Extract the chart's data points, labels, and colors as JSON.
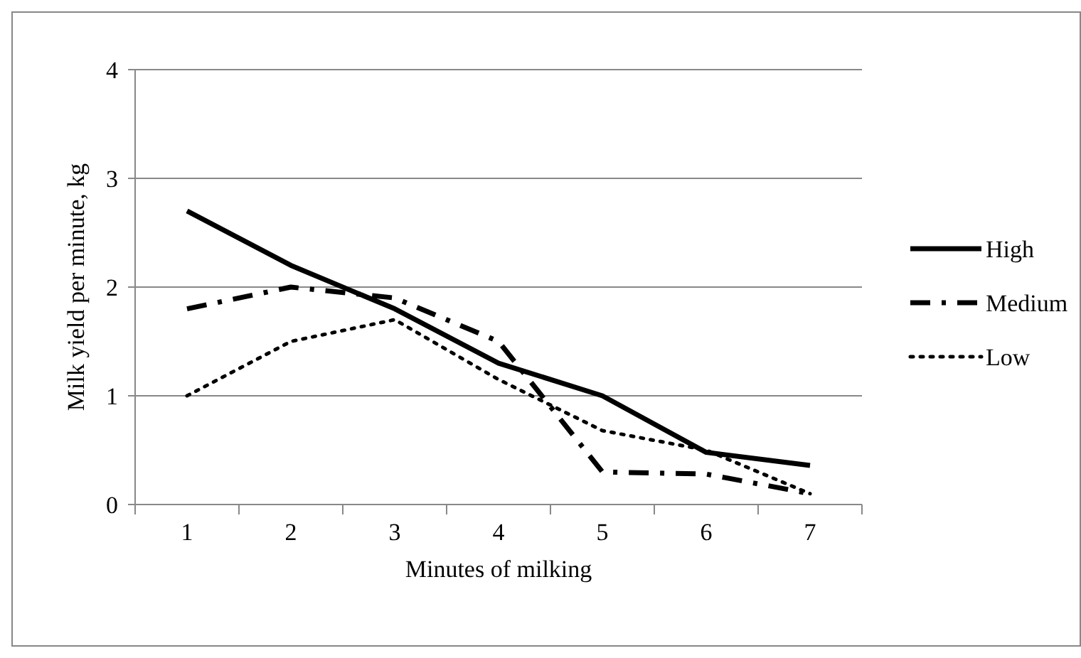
{
  "chart_data": {
    "type": "line",
    "xlabel": "Minutes  of milking",
    "ylabel": "Milk yield per minute,  kg",
    "categories": [
      "1",
      "2",
      "3",
      "4",
      "5",
      "6",
      "7"
    ],
    "ylim": [
      0,
      4
    ],
    "yticks": [
      0,
      1,
      2,
      3,
      4
    ],
    "grid": "y",
    "legend": "right",
    "marker": "none",
    "series": [
      {
        "name": "High",
        "color": "#000000",
        "line_style": "solid",
        "values": [
          2.7,
          2.2,
          1.8,
          1.3,
          1.0,
          0.48,
          0.36
        ]
      },
      {
        "name": "Medium",
        "color": "#000000",
        "line_style": "dashed",
        "values": [
          1.8,
          2.0,
          1.9,
          1.5,
          0.3,
          0.28,
          0.1
        ]
      },
      {
        "name": "Low",
        "color": "#000000",
        "line_style": "dotted",
        "values": [
          1.0,
          1.5,
          1.7,
          1.15,
          0.68,
          0.5,
          0.1
        ]
      }
    ]
  }
}
